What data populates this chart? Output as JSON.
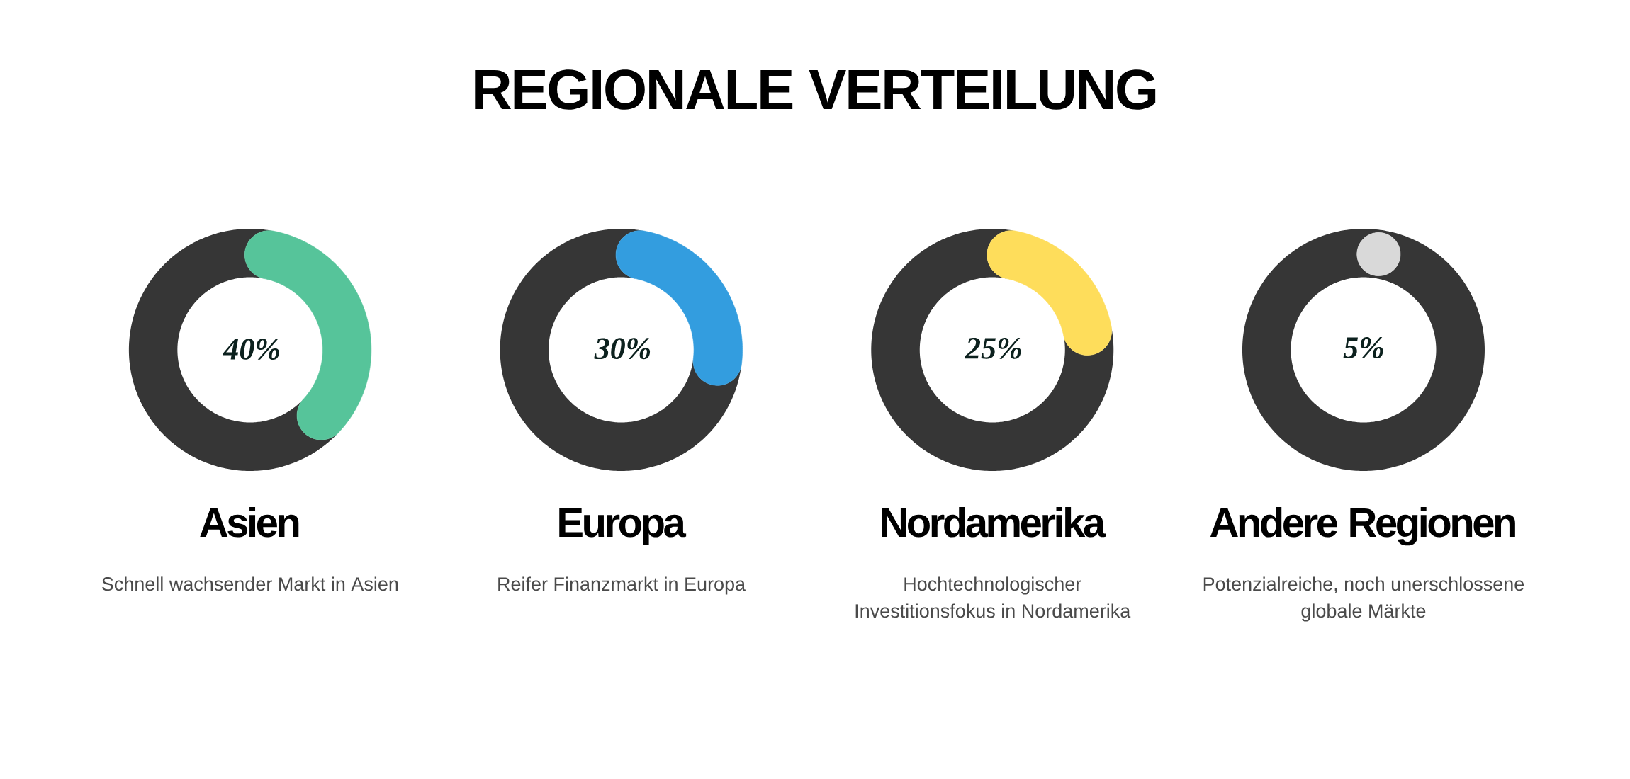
{
  "chart_data": [
    {
      "type": "other",
      "title": "REGIONALE VERTEILUNG"
    },
    {
      "type": "donut",
      "title": "Asien",
      "subtitle": "Schnell wachsender Markt in Asien",
      "categories": [
        null,
        null
      ],
      "values": [
        40,
        60
      ],
      "colors": [
        "#56c49a",
        "#363636"
      ],
      "value_labels": [
        "40%",
        null
      ]
    },
    {
      "type": "donut",
      "title": "Europa",
      "subtitle": "Reifer Finanzmarkt in Europa",
      "categories": [
        null,
        null
      ],
      "values": [
        30,
        70
      ],
      "colors": [
        "#339ddf",
        "#363636"
      ],
      "value_labels": [
        "30%",
        null
      ]
    },
    {
      "type": "donut",
      "title": "Nordamerika",
      "subtitle": "Hochtechnologischer Investitionsfokus in Nordamerika",
      "categories": [
        null,
        null
      ],
      "values": [
        25,
        75
      ],
      "colors": [
        "#fedd5b",
        "#363636"
      ],
      "value_labels": [
        "25%",
        null
      ]
    },
    {
      "type": "donut",
      "title": "Andere Regionen",
      "subtitle": "Potenzialreiche, noch unerschlossene globale Märkte",
      "categories": [
        null,
        null
      ],
      "values": [
        5,
        95
      ],
      "colors": [
        "#d9d9d9",
        "#363636"
      ],
      "value_labels": [
        "5%",
        null
      ]
    }
  ]
}
